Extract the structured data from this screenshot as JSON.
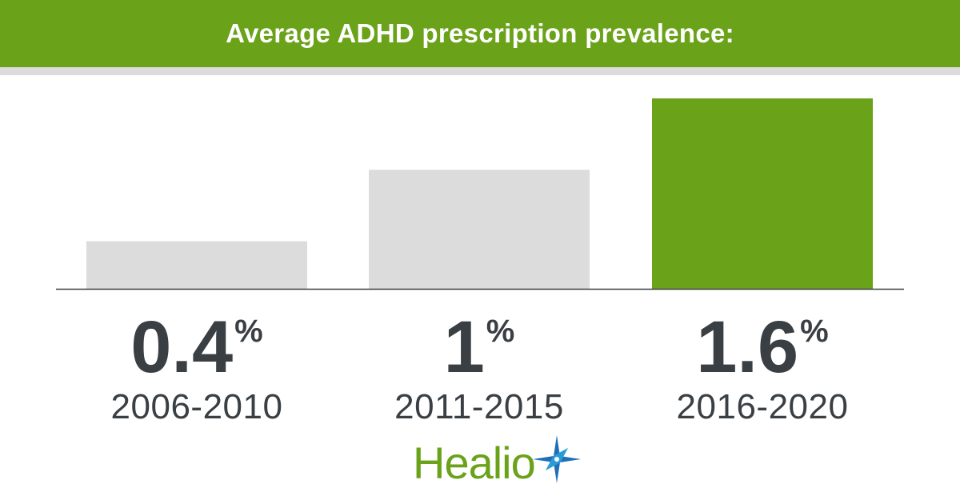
{
  "header": {
    "title": "Average ADHD prescription prevalence:"
  },
  "colors": {
    "accent": "#6aa21a",
    "bar_muted": "#dcdcdc",
    "text": "#3a3f44"
  },
  "chart_data": {
    "type": "bar",
    "categories": [
      "2006-2010",
      "2011-2015",
      "2016-2020"
    ],
    "values": [
      0.4,
      1,
      1.6
    ],
    "value_labels": [
      "0.4",
      "1",
      "1.6"
    ],
    "unit": "%",
    "highlight_index": 2,
    "ylim": [
      0,
      1.6
    ],
    "grid": false,
    "legend": "none"
  },
  "logo": {
    "text": "Healio",
    "icon": "star-compass-icon"
  }
}
